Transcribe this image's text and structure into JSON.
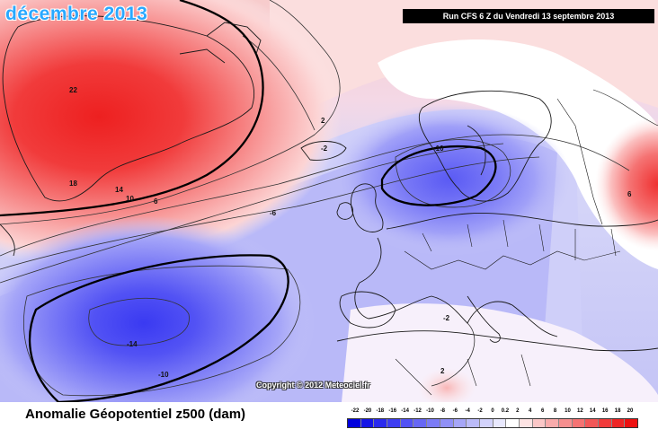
{
  "title": "décembre 2013",
  "run_info": "Run CFS 6 Z du Vendredi 13 septembre 2013",
  "copyright": "Copyright © 2012 Meteociel.fr",
  "variable_label": "Anomalie Géopotentiel z500 (dam)",
  "colors": {
    "title": "#29a8ff",
    "positive_max": "#ff1f1f",
    "negative_max": "#3a3af2",
    "neutral": "#ffffff",
    "land_lines": "#222222"
  },
  "legend": {
    "ticks": [
      "-22",
      "-20",
      "-18",
      "-16",
      "-14",
      "-12",
      "-10",
      "-8",
      "-6",
      "-4",
      "-2",
      "0",
      "0.2",
      "2",
      "4",
      "6",
      "8",
      "10",
      "12",
      "14",
      "16",
      "18",
      "20"
    ],
    "colors": [
      "#0000dd",
      "#1515e6",
      "#2a2aee",
      "#3d3df2",
      "#5252f4",
      "#6767f5",
      "#7b7bf6",
      "#9090f7",
      "#a6a6f8",
      "#bbbbf9",
      "#d2d2fb",
      "#e8e8fd",
      "#ffffff",
      "#fde3e3",
      "#fbc7c7",
      "#f9abab",
      "#f78f8f",
      "#f57373",
      "#f35757",
      "#f13b3b",
      "#ef2525",
      "#ed1010"
    ]
  },
  "contour_labels": [
    {
      "text": "22",
      "value": 22
    },
    {
      "text": "18",
      "value": 18
    },
    {
      "text": "14",
      "value": 14
    },
    {
      "text": "10",
      "value": 10
    },
    {
      "text": "6",
      "value": 6
    },
    {
      "text": "2",
      "value": 2
    },
    {
      "text": "-2",
      "value": -2
    },
    {
      "text": "-6",
      "value": -6
    },
    {
      "text": "-10",
      "value": -10
    },
    {
      "text": "-14",
      "value": -14
    },
    {
      "text": "-10",
      "value": -10
    },
    {
      "text": "-2",
      "value": -2
    },
    {
      "text": "6",
      "value": 6
    },
    {
      "text": "2",
      "value": 2
    }
  ]
}
